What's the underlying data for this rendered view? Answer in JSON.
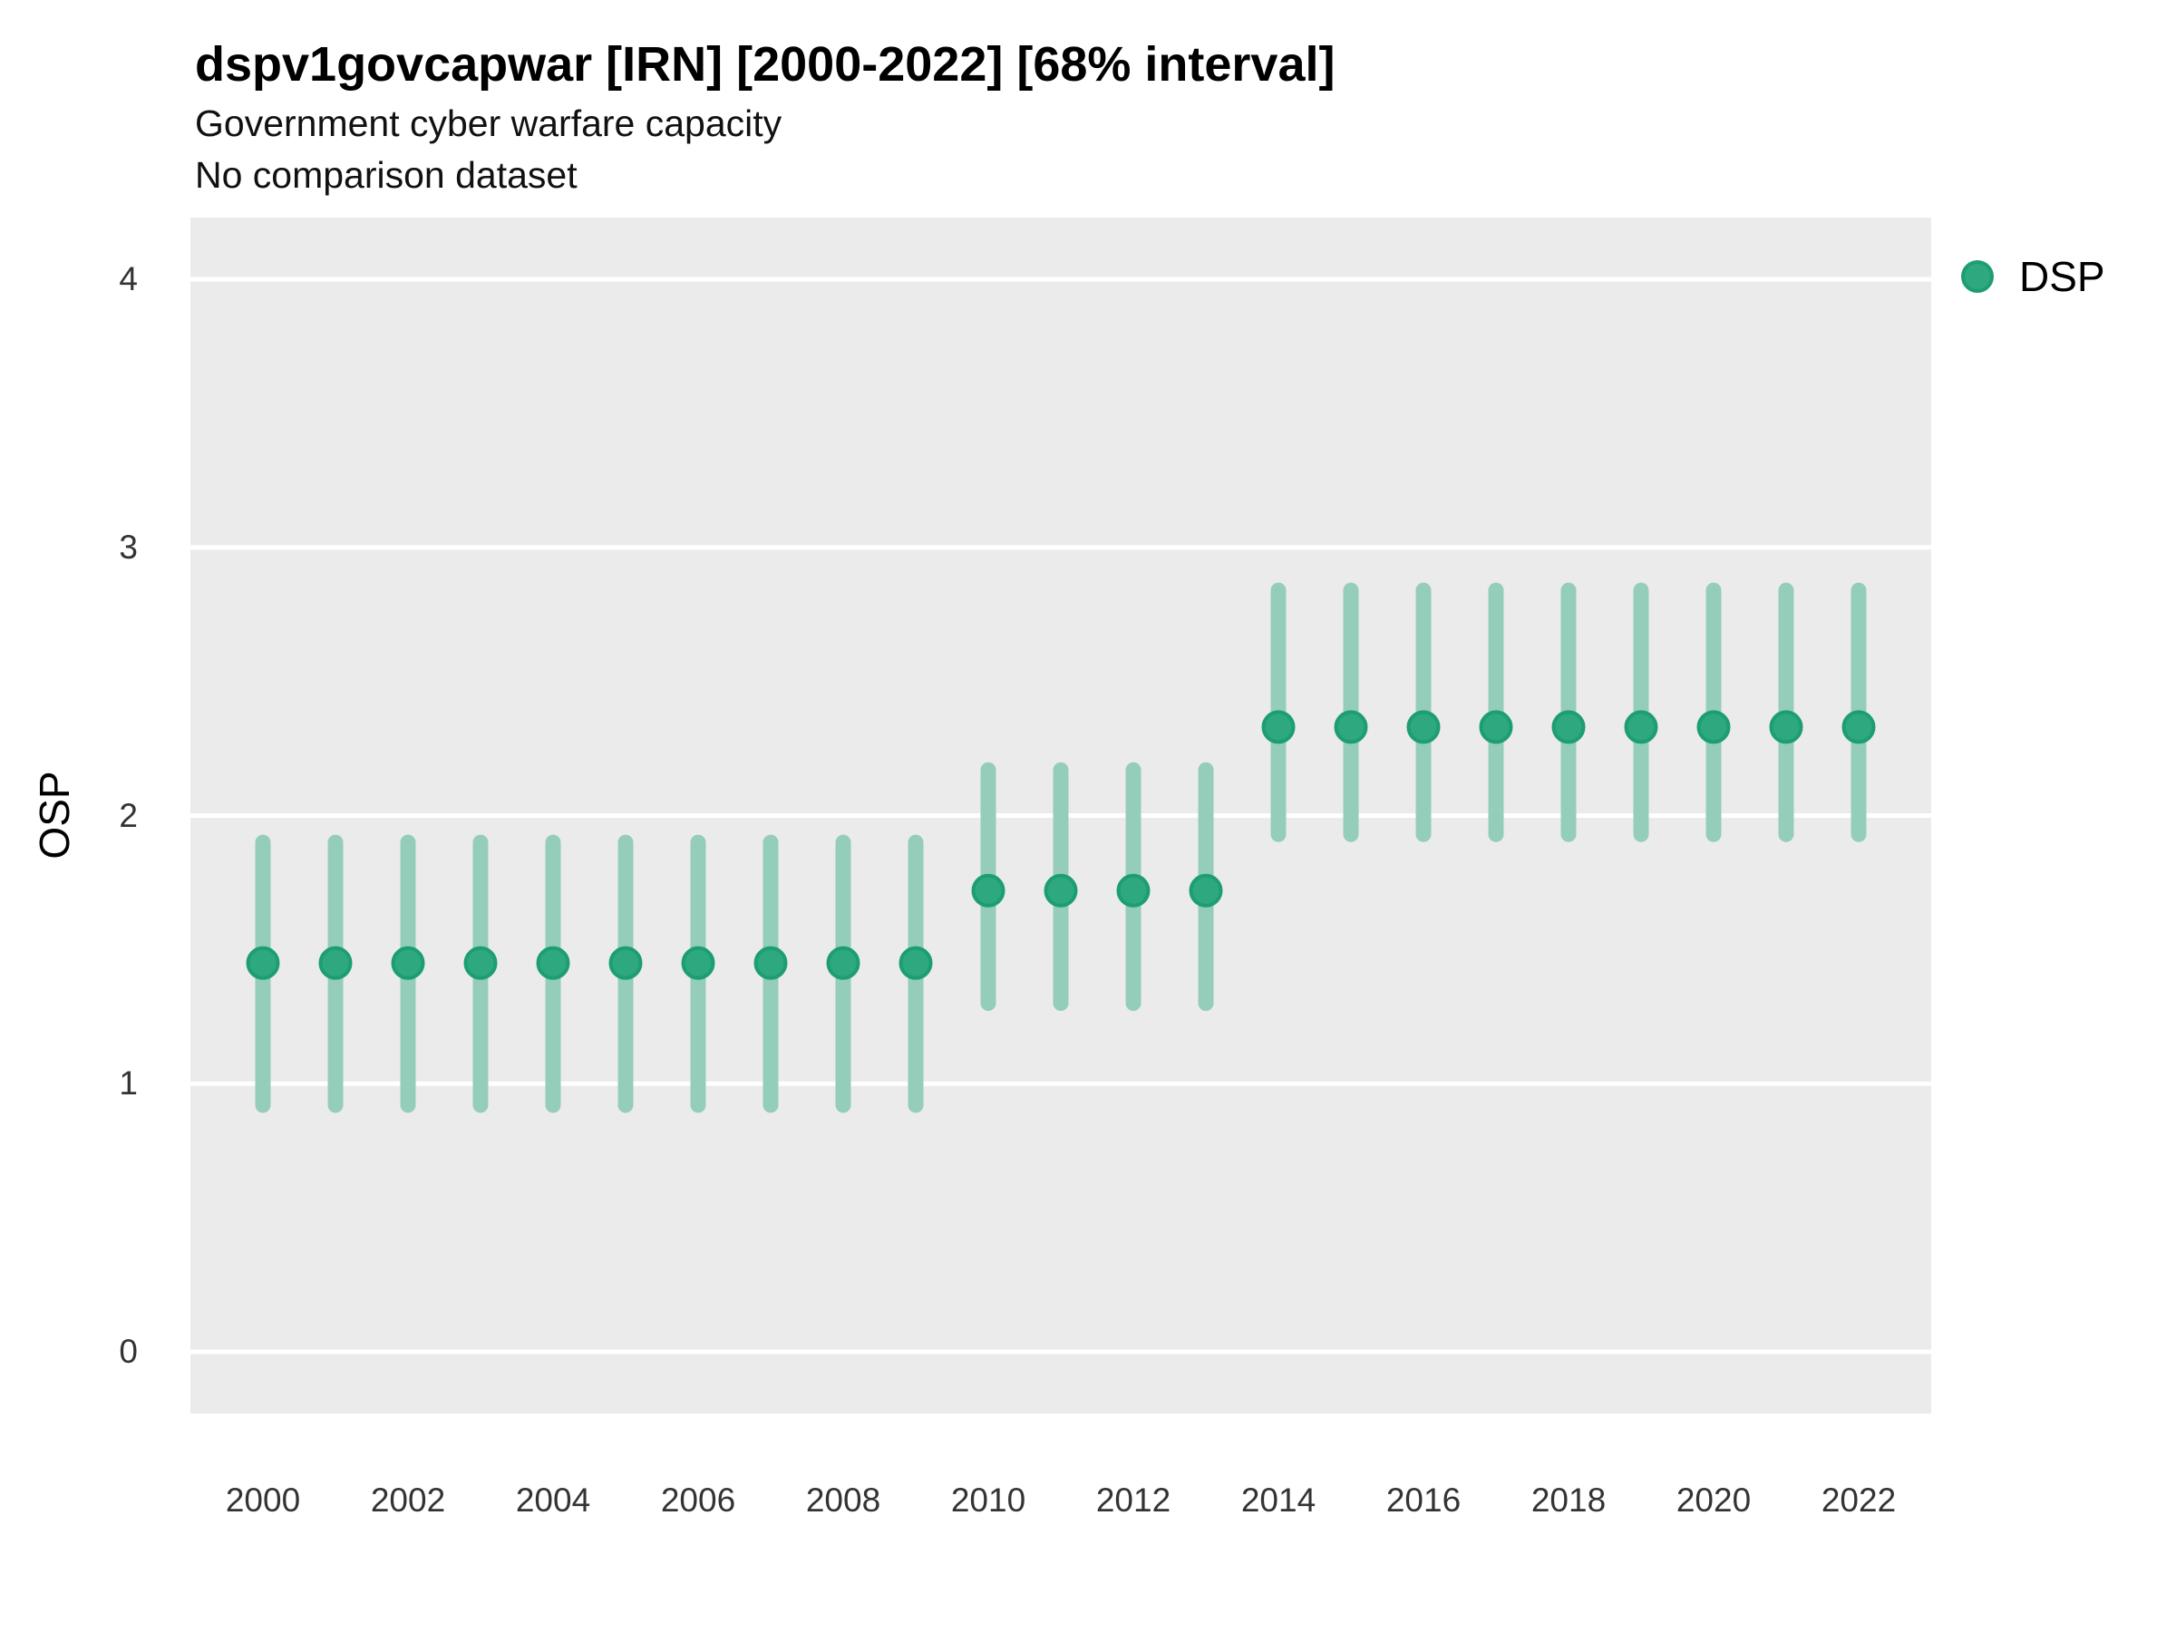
{
  "header": {
    "title": "dspv1govcapwar [IRN] [2000-2022] [68% interval]",
    "subtitle": "Government cyber warfare capacity",
    "note": "No comparison dataset"
  },
  "legend": {
    "label": "DSP"
  },
  "axes": {
    "y_label": "OSP",
    "y_ticks": [
      "0",
      "1",
      "2",
      "3",
      "4"
    ],
    "x_ticks": [
      "2000",
      "2002",
      "2004",
      "2006",
      "2008",
      "2010",
      "2012",
      "2014",
      "2016",
      "2018",
      "2020",
      "2022"
    ]
  },
  "colors": {
    "point_fill": "#2EA87E",
    "point_stroke": "#1D9E72",
    "interval_bar": "#94CDBA",
    "panel_background": "#EBEBEB",
    "gridline": "#FFFFFF"
  },
  "chart_data": {
    "type": "scatter",
    "title": "dspv1govcapwar [IRN] [2000-2022] [68% interval]",
    "subtitle": "Government cyber warfare capacity",
    "note": "No comparison dataset",
    "xlabel": "",
    "ylabel": "OSP",
    "legend_position": "right",
    "grid": "major-horizontal",
    "interval": "68%",
    "xlim": [
      1999,
      2023
    ],
    "ylim": [
      -0.23,
      4.23
    ],
    "x_tick_values": [
      2000,
      2002,
      2004,
      2006,
      2008,
      2010,
      2012,
      2014,
      2016,
      2018,
      2020,
      2022
    ],
    "y_tick_values": [
      0,
      1,
      2,
      3,
      4
    ],
    "series": [
      {
        "name": "DSP",
        "x": [
          2000,
          2001,
          2002,
          2003,
          2004,
          2005,
          2006,
          2007,
          2008,
          2009,
          2010,
          2011,
          2012,
          2013,
          2014,
          2015,
          2016,
          2017,
          2018,
          2019,
          2020,
          2021,
          2022
        ],
        "y": [
          1.45,
          1.45,
          1.45,
          1.45,
          1.45,
          1.45,
          1.45,
          1.45,
          1.45,
          1.45,
          1.72,
          1.72,
          1.72,
          1.72,
          2.33,
          2.33,
          2.33,
          2.33,
          2.33,
          2.33,
          2.33,
          2.33,
          2.33
        ],
        "y_low": [
          0.92,
          0.92,
          0.92,
          0.92,
          0.92,
          0.92,
          0.92,
          0.92,
          0.92,
          0.92,
          1.3,
          1.3,
          1.3,
          1.3,
          1.93,
          1.93,
          1.93,
          1.93,
          1.93,
          1.93,
          1.93,
          1.93,
          1.93
        ],
        "y_high": [
          1.9,
          1.9,
          1.9,
          1.9,
          1.9,
          1.9,
          1.9,
          1.9,
          1.9,
          1.9,
          2.17,
          2.17,
          2.17,
          2.17,
          2.84,
          2.84,
          2.84,
          2.84,
          2.84,
          2.84,
          2.84,
          2.84,
          2.84
        ]
      }
    ]
  }
}
